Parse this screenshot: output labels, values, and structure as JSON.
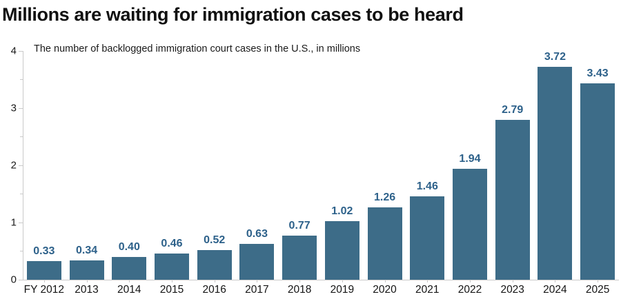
{
  "header": {
    "title": "Millions are waiting for immigration cases to be heard",
    "subtitle": "The number of backlogged immigration court cases in the U.S., in millions"
  },
  "chart_data": {
    "type": "bar",
    "title": "Millions are waiting for immigration cases to be heard",
    "subtitle": "The number of backlogged immigration court cases in the U.S., in millions",
    "categories": [
      "FY 2012",
      "2013",
      "2014",
      "2015",
      "2016",
      "2017",
      "2018",
      "2019",
      "2020",
      "2021",
      "2022",
      "2023",
      "2024",
      "2025"
    ],
    "values": [
      0.33,
      0.34,
      0.4,
      0.46,
      0.52,
      0.63,
      0.77,
      1.02,
      1.26,
      1.46,
      1.94,
      2.79,
      3.72,
      3.43
    ],
    "value_labels": [
      "0.33",
      "0.34",
      "0.40",
      "0.46",
      "0.52",
      "0.63",
      "0.77",
      "1.02",
      "1.26",
      "1.46",
      "1.94",
      "2.79",
      "3.72",
      "3.43"
    ],
    "xlabel": "",
    "ylabel": "",
    "ylim": [
      0,
      4
    ],
    "yticks": [
      0,
      1,
      2,
      3,
      4
    ],
    "ytick_labels": [
      "0",
      "1",
      "2",
      "3",
      "4"
    ],
    "minor_tick_interval": 0.5,
    "grid": false,
    "legend": false,
    "colors": {
      "bar": "#3d6c88",
      "value_label": "#2d618a",
      "axis": "#c9c9c9",
      "text": "#1a1a1a",
      "title": "#111111",
      "background": "#ffffff"
    }
  }
}
